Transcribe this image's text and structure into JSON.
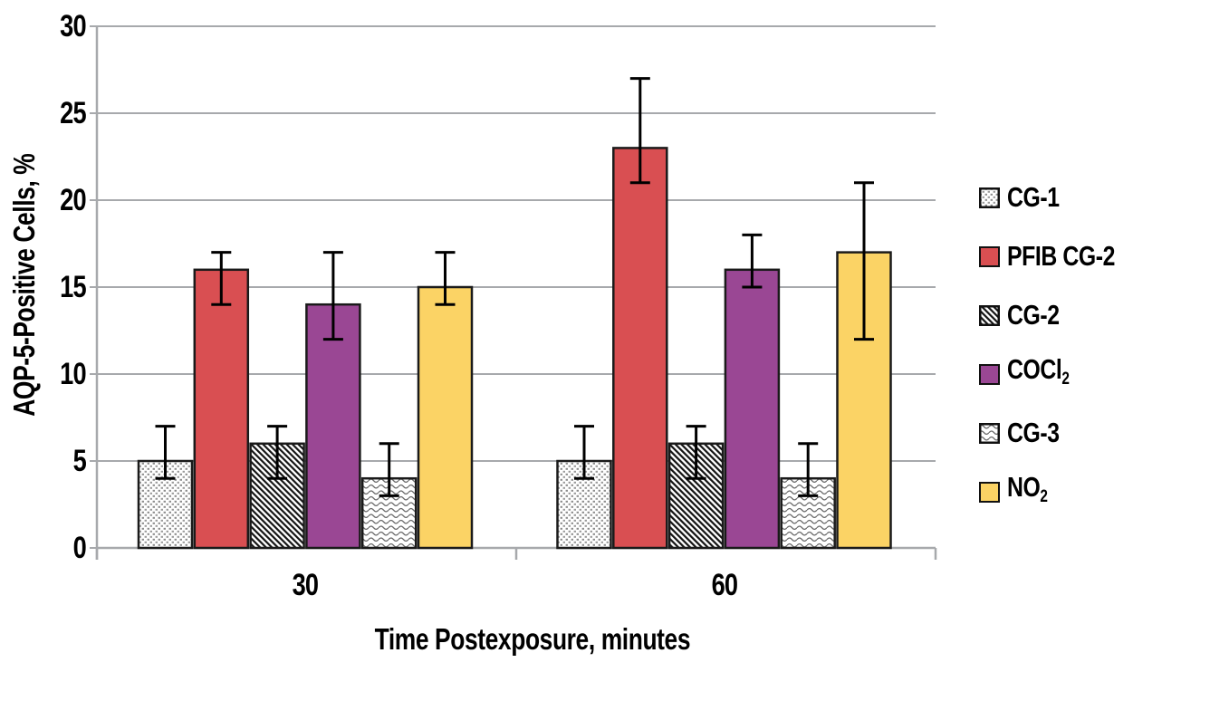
{
  "chart_data": {
    "type": "bar",
    "title": "",
    "xlabel": "Time Postexposure, minutes",
    "ylabel": "AQP-5-Positive Cells, %",
    "categories": [
      "30",
      "60"
    ],
    "ylim": [
      0,
      30
    ],
    "yticks": [
      0,
      5,
      10,
      15,
      20,
      25,
      30
    ],
    "grid": true,
    "legend_position": "right",
    "axis_color": "#A7A9AC",
    "bar_outline_color": "#1A1A1A",
    "error_bar_color": "#000000",
    "text_color": "#000000",
    "series": [
      {
        "name": "CG-1",
        "subscript": "",
        "style": "pattern-dots",
        "color": "#ffffff",
        "values": [
          5,
          5
        ],
        "err_low": [
          4,
          4
        ],
        "err_high": [
          7,
          7
        ]
      },
      {
        "name": "PFIB CG-2",
        "subscript": "",
        "style": "solid",
        "color": "#D94F52",
        "values": [
          16,
          23
        ],
        "err_low": [
          14,
          21
        ],
        "err_high": [
          17,
          27
        ]
      },
      {
        "name": "CG-2",
        "subscript": "",
        "style": "pattern-hatch",
        "color": "#ffffff",
        "values": [
          6,
          6
        ],
        "err_low": [
          4,
          4
        ],
        "err_high": [
          7,
          7
        ]
      },
      {
        "name": "COCl",
        "subscript": "2",
        "style": "solid",
        "color": "#9A4794",
        "values": [
          14,
          16
        ],
        "err_low": [
          12,
          15
        ],
        "err_high": [
          17,
          18
        ]
      },
      {
        "name": "CG-3",
        "subscript": "",
        "style": "pattern-waves",
        "color": "#ffffff",
        "values": [
          4,
          4
        ],
        "err_low": [
          3,
          3
        ],
        "err_high": [
          6,
          6
        ]
      },
      {
        "name": "NO",
        "subscript": "2",
        "style": "solid",
        "color": "#FBD365",
        "values": [
          15,
          17
        ],
        "err_low": [
          14,
          12
        ],
        "err_high": [
          17,
          21
        ]
      }
    ]
  }
}
